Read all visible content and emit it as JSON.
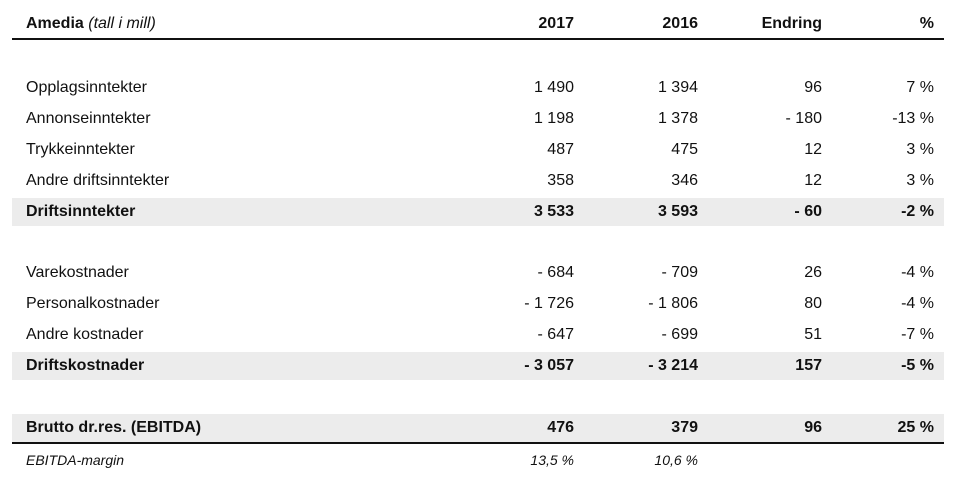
{
  "header": {
    "company": "Amedia",
    "unit": "(tall i mill)",
    "col_2017": "2017",
    "col_2016": "2016",
    "col_change": "Endring",
    "col_pct": "%"
  },
  "rows": [
    {
      "label": "Opplagsinntekter",
      "v2017": "1 490",
      "v2016": "1 394",
      "change": "96",
      "pct": "7 %"
    },
    {
      "label": "Annonseinntekter",
      "v2017": "1 198",
      "v2016": "1 378",
      "change": "- 180",
      "pct": "-13 %"
    },
    {
      "label": "Trykkeinntekter",
      "v2017": "487",
      "v2016": "475",
      "change": "12",
      "pct": "3 %"
    },
    {
      "label": "Andre driftsinntekter",
      "v2017": "358",
      "v2016": "346",
      "change": "12",
      "pct": "3 %"
    },
    {
      "label": "Driftsinntekter",
      "v2017": "3 533",
      "v2016": "3 593",
      "change": "- 60",
      "pct": "-2 %"
    },
    {
      "label": "Varekostnader",
      "v2017": "- 684",
      "v2016": "- 709",
      "change": "26",
      "pct": "-4 %"
    },
    {
      "label": "Personalkostnader",
      "v2017": "- 1 726",
      "v2016": "- 1 806",
      "change": "80",
      "pct": "-4 %"
    },
    {
      "label": "Andre kostnader",
      "v2017": "- 647",
      "v2016": "- 699",
      "change": "51",
      "pct": "-7 %"
    },
    {
      "label": "Driftskostnader",
      "v2017": "- 3 057",
      "v2016": "- 3 214",
      "change": "157",
      "pct": "-5 %"
    },
    {
      "label": "Brutto dr.res. (EBITDA)",
      "v2017": "476",
      "v2016": "379",
      "change": "96",
      "pct": "25 %"
    },
    {
      "label": "EBITDA-margin",
      "v2017": "13,5 %",
      "v2016": "10,6 %",
      "change": "",
      "pct": ""
    }
  ]
}
